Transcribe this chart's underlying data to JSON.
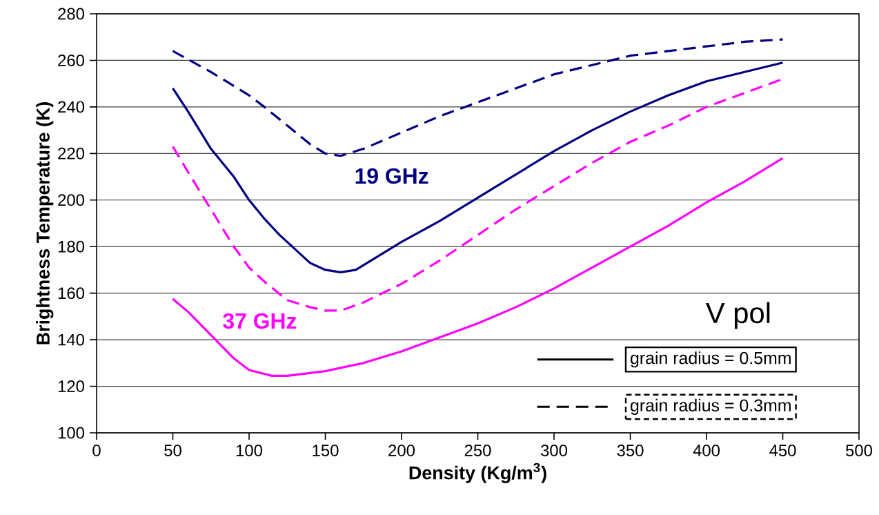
{
  "chart_data": {
    "type": "line",
    "xlabel": "Density (Kg/m$^{3}$)",
    "ylabel": "Brightness Temperature (K)",
    "xlim": [
      0,
      500
    ],
    "ylim": [
      100,
      280
    ],
    "xticks": [
      0,
      50,
      100,
      150,
      200,
      250,
      300,
      350,
      400,
      450,
      500
    ],
    "yticks": [
      100,
      120,
      140,
      160,
      180,
      200,
      220,
      240,
      260,
      280
    ],
    "grid": "y",
    "marker": "none",
    "series": [
      {
        "color": "#000080",
        "line_style": "solid",
        "x": [
          50,
          60,
          75,
          90,
          100,
          110,
          120,
          130,
          140,
          150,
          160,
          170,
          180,
          200,
          225,
          250,
          275,
          300,
          325,
          350,
          375,
          400,
          425,
          450
        ],
        "values": [
          248,
          238,
          222,
          210,
          200,
          192,
          185,
          179,
          173,
          170,
          169,
          170,
          174,
          182,
          191,
          201,
          211,
          221,
          230,
          238,
          245,
          251,
          255,
          259
        ]
      },
      {
        "color": "#000080",
        "line_style": "dashed",
        "x": [
          50,
          75,
          100,
          110,
          125,
          140,
          150,
          160,
          175,
          200,
          225,
          250,
          275,
          300,
          325,
          350,
          375,
          400,
          425,
          450
        ],
        "values": [
          264,
          255,
          245,
          240,
          232,
          224,
          220,
          219,
          222,
          229,
          236,
          242,
          248,
          254,
          258,
          262,
          264,
          266,
          268,
          269
        ]
      },
      {
        "color": "#ff00ff",
        "line_style": "solid",
        "x": [
          50,
          60,
          75,
          90,
          100,
          115,
          125,
          150,
          175,
          200,
          225,
          250,
          275,
          300,
          325,
          350,
          375,
          400,
          425,
          450
        ],
        "values": [
          157.5,
          152,
          142,
          132,
          127,
          124.5,
          124.5,
          126.5,
          130,
          135,
          141,
          147,
          154,
          162,
          171,
          180,
          189,
          199,
          208,
          218
        ]
      },
      {
        "color": "#ff00ff",
        "line_style": "dashed",
        "x": [
          50,
          60,
          75,
          90,
          100,
          110,
          125,
          140,
          150,
          160,
          175,
          200,
          225,
          250,
          275,
          300,
          325,
          350,
          375,
          400,
          425,
          450
        ],
        "values": [
          223,
          212,
          196,
          180,
          171,
          165,
          157,
          154,
          152.5,
          152.5,
          156,
          164,
          174,
          185,
          196,
          206,
          216,
          225,
          232,
          240,
          246,
          252
        ]
      }
    ],
    "annotations": [
      "19 GHz",
      "37 GHz",
      "V pol",
      "grain radius = 0.5mm",
      "grain radius = 0.3mm"
    ]
  }
}
